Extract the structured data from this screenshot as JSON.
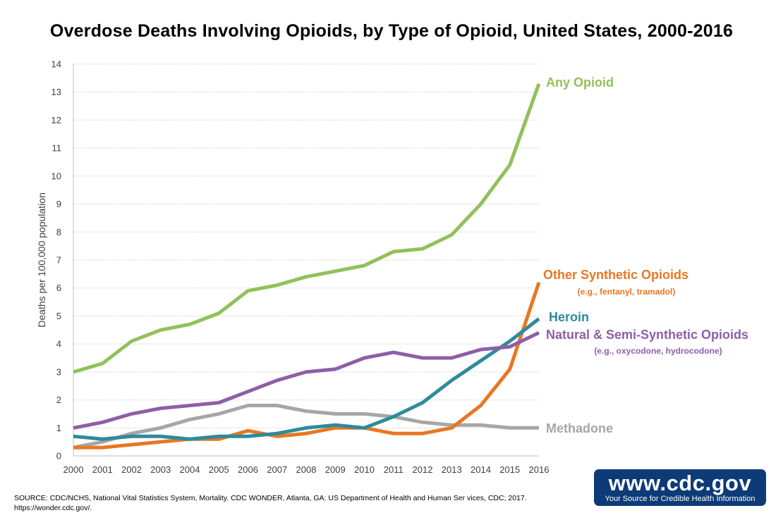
{
  "title": "Overdose Deaths Involving Opioids, by Type of Opioid, United States, 2000-2016",
  "source": "SOURCE: CDC/NCHS, National Vital Statistics System, Mortality. CDC WONDER, Atlanta, GA: US Department of Health and Human Ser vices, CDC; 2017. https://wonder.cdc.gov/.",
  "badge": {
    "url": "www.cdc.gov",
    "tagline": "Your Source for Credible Health Information",
    "color": "#0d3b78"
  },
  "chart_data": {
    "type": "line",
    "title": "Overdose Deaths Involving Opioids, by Type of Opioid, United States, 2000-2016",
    "xlabel": "",
    "ylabel": "Deaths per 100,000 population",
    "x": [
      2000,
      2001,
      2002,
      2003,
      2004,
      2005,
      2006,
      2007,
      2008,
      2009,
      2010,
      2011,
      2012,
      2013,
      2014,
      2015,
      2016
    ],
    "xticks": [
      "2000",
      "2001",
      "2002",
      "2003",
      "2004",
      "2005",
      "2006",
      "2007",
      "2008",
      "2009",
      "2010",
      "2011",
      "2012",
      "2013",
      "2014",
      "2015",
      "2016"
    ],
    "ylim": [
      0,
      14
    ],
    "yticks": [
      "0",
      "1",
      "2",
      "3",
      "4",
      "5",
      "6",
      "7",
      "8",
      "9",
      "10",
      "11",
      "12",
      "13",
      "14"
    ],
    "grid": "horizontal-dotted",
    "legend": "direct labels at right end of lines",
    "series": [
      {
        "name": "Methadone",
        "color": "#a6a6a6",
        "values": [
          0.3,
          0.5,
          0.8,
          1.0,
          1.3,
          1.5,
          1.8,
          1.8,
          1.6,
          1.5,
          1.5,
          1.4,
          1.2,
          1.1,
          1.1,
          1.0,
          1.0
        ]
      },
      {
        "name": "Other Synthetic Opioids",
        "sublabel": "(e.g., fentanyl, tramadol)",
        "color": "#e87722",
        "values": [
          0.3,
          0.3,
          0.4,
          0.5,
          0.6,
          0.6,
          0.9,
          0.7,
          0.8,
          1.0,
          1.0,
          0.8,
          0.8,
          1.0,
          1.8,
          3.1,
          6.2
        ]
      },
      {
        "name": "Heroin",
        "color": "#2e8b9a",
        "values": [
          0.7,
          0.6,
          0.7,
          0.7,
          0.6,
          0.7,
          0.7,
          0.8,
          1.0,
          1.1,
          1.0,
          1.4,
          1.9,
          2.7,
          3.4,
          4.1,
          4.9
        ]
      },
      {
        "name": "Natural & Semi-Synthetic Opioids",
        "sublabel": "(e.g., oxycodone, hydrocodone)",
        "color": "#8e5ea8",
        "values": [
          1.0,
          1.2,
          1.5,
          1.7,
          1.8,
          1.9,
          2.3,
          2.7,
          3.0,
          3.1,
          3.5,
          3.7,
          3.5,
          3.5,
          3.8,
          3.9,
          4.4
        ]
      },
      {
        "name": "Any Opioid",
        "color": "#92c05a",
        "values": [
          3.0,
          3.3,
          4.1,
          4.5,
          4.7,
          5.1,
          5.9,
          6.1,
          6.4,
          6.6,
          6.8,
          7.3,
          7.4,
          7.9,
          9.0,
          10.4,
          13.3
        ]
      }
    ]
  }
}
